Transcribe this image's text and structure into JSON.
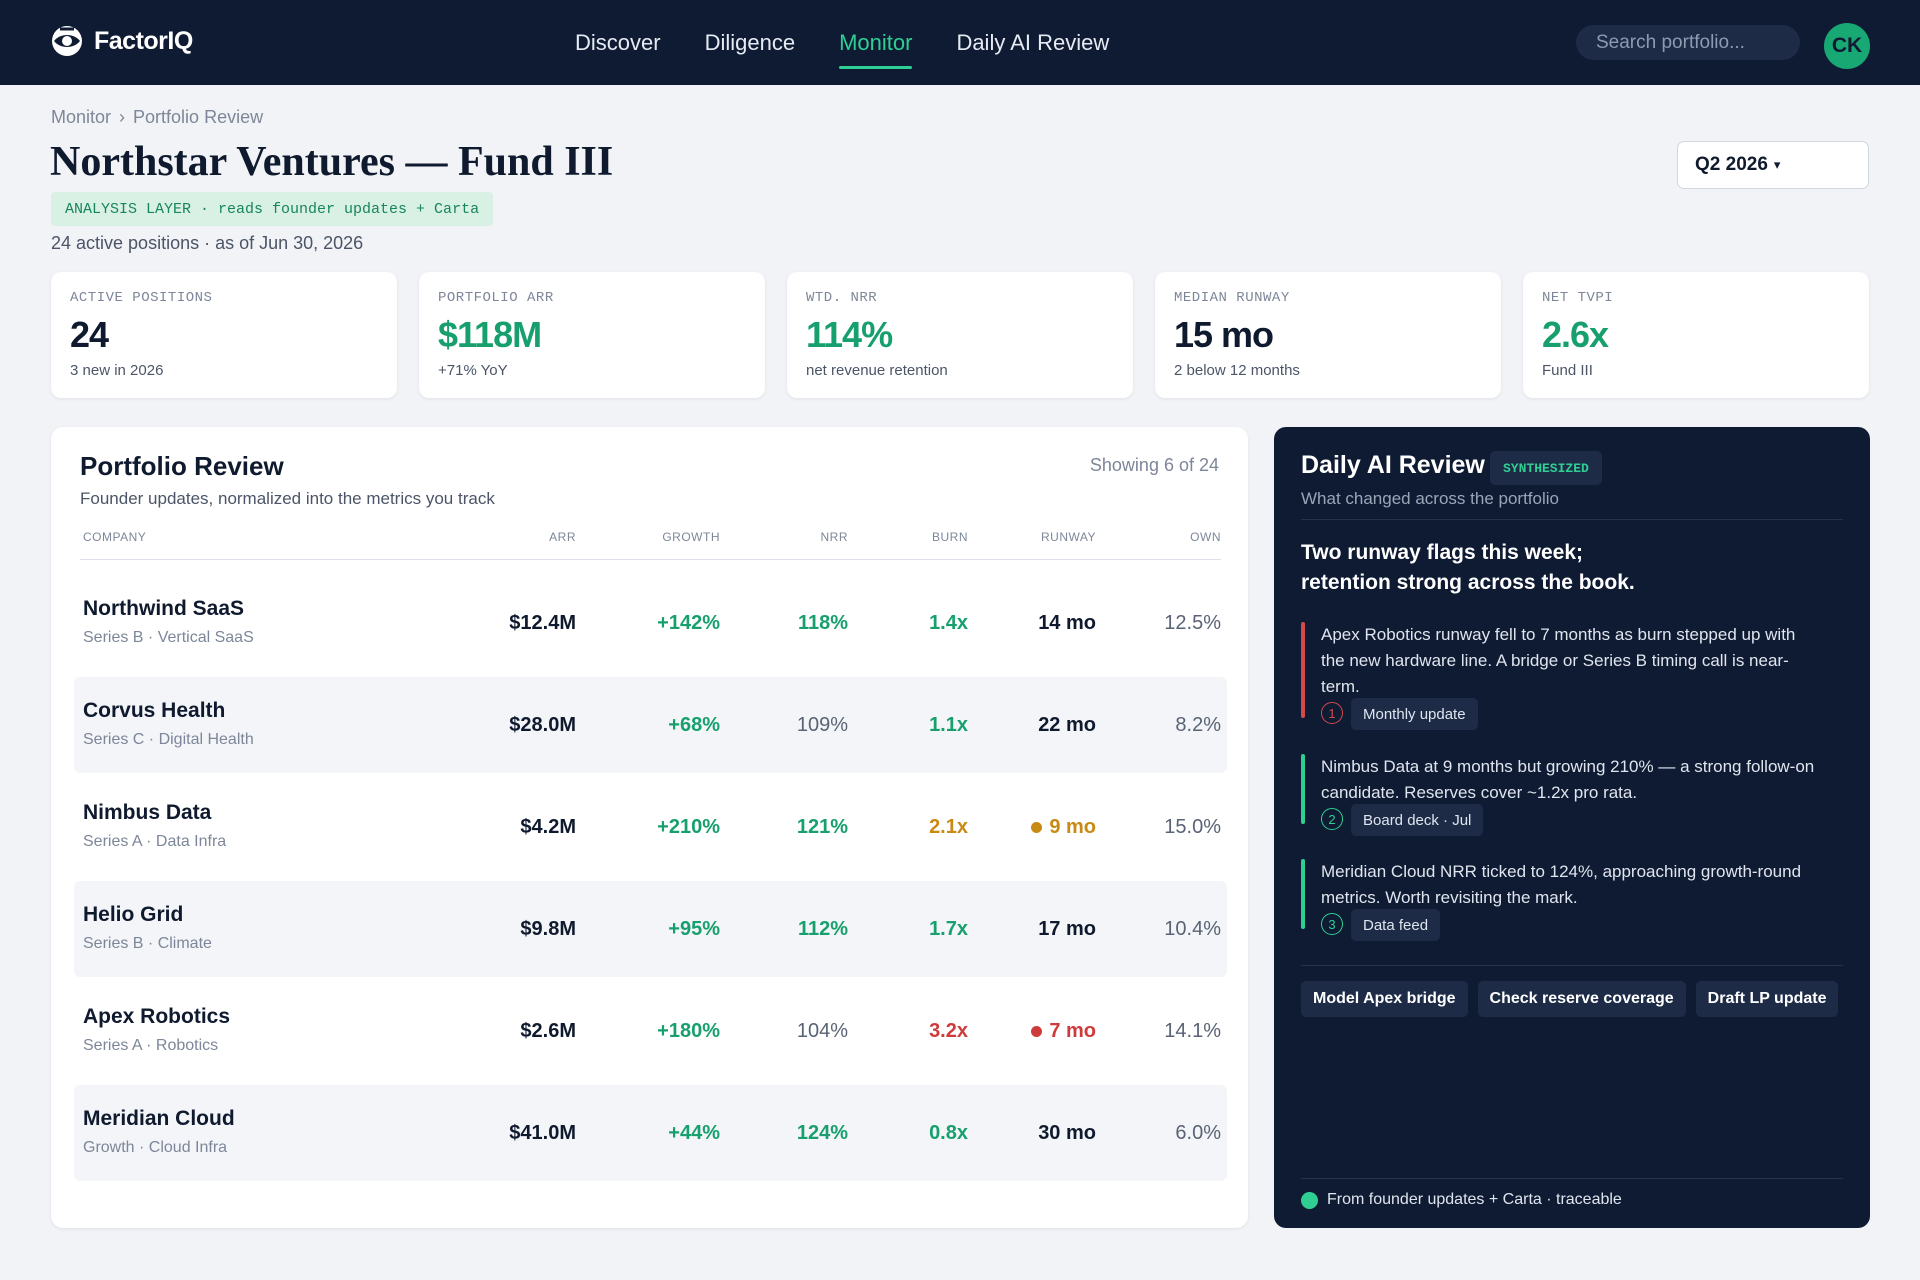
{
  "app": {
    "brand": "FactorIQ",
    "nav": [
      {
        "label": "Discover",
        "active": false
      },
      {
        "label": "Diligence",
        "active": false
      },
      {
        "label": "Monitor",
        "active": true
      },
      {
        "label": "Daily AI Review",
        "active": false
      }
    ],
    "search_placeholder": "Search portfolio...",
    "user_initials": "CK"
  },
  "header": {
    "breadcrumb": [
      "Monitor",
      "Portfolio Review"
    ],
    "breadcrumb_sep": "›",
    "title": "Northstar Ventures — Fund III",
    "layer_tag": "ANALYSIS LAYER · reads founder updates + Carta",
    "subtitle": "24 active positions · as of Jun 30, 2026",
    "period": "Q2 2026",
    "period_caret": "▾"
  },
  "kpis": [
    {
      "label": "ACTIVE POSITIONS",
      "value": "24",
      "sub": "3 new in 2026",
      "accent": false
    },
    {
      "label": "PORTFOLIO ARR",
      "value": "$118M",
      "sub": "+71% YoY",
      "accent": true
    },
    {
      "label": "WTD. NRR",
      "value": "114%",
      "sub": "net revenue retention",
      "accent": true
    },
    {
      "label": "MEDIAN RUNWAY",
      "value": "15 mo",
      "sub": "2 below 12 months",
      "accent": false
    },
    {
      "label": "NET TVPI",
      "value": "2.6x",
      "sub": "Fund III",
      "accent": true
    }
  ],
  "review": {
    "title": "Portfolio Review",
    "subtitle": "Founder updates, normalized into the metrics you track",
    "count": "Showing 6 of 24",
    "columns": [
      "COMPANY",
      "ARR",
      "GROWTH",
      "NRR",
      "BURN",
      "RUNWAY",
      "OWN"
    ],
    "rows": [
      {
        "name": "Northwind SaaS",
        "meta": "Series B · Vertical SaaS",
        "arr": "$12.4M",
        "growth": "+142%",
        "nrr": "118%",
        "nrr_status": "good",
        "burn": "1.4x",
        "burn_status": "good",
        "runway": "14 mo",
        "runway_status": "ok",
        "own": "12.5%"
      },
      {
        "name": "Corvus Health",
        "meta": "Series C · Digital Health",
        "arr": "$28.0M",
        "growth": "+68%",
        "nrr": "109%",
        "nrr_status": "neutral",
        "burn": "1.1x",
        "burn_status": "good",
        "runway": "22 mo",
        "runway_status": "ok",
        "own": "8.2%"
      },
      {
        "name": "Nimbus Data",
        "meta": "Series A · Data Infra",
        "arr": "$4.2M",
        "growth": "+210%",
        "nrr": "121%",
        "nrr_status": "good",
        "burn": "2.1x",
        "burn_status": "warn",
        "runway": "9 mo",
        "runway_status": "warn",
        "own": "15.0%"
      },
      {
        "name": "Helio Grid",
        "meta": "Series B · Climate",
        "arr": "$9.8M",
        "growth": "+95%",
        "nrr": "112%",
        "nrr_status": "good",
        "burn": "1.7x",
        "burn_status": "good",
        "runway": "17 mo",
        "runway_status": "ok",
        "own": "10.4%"
      },
      {
        "name": "Apex Robotics",
        "meta": "Series A · Robotics",
        "arr": "$2.6M",
        "growth": "+180%",
        "nrr": "104%",
        "nrr_status": "neutral",
        "burn": "3.2x",
        "burn_status": "bad",
        "runway": "7 mo",
        "runway_status": "bad",
        "own": "14.1%"
      },
      {
        "name": "Meridian Cloud",
        "meta": "Growth · Cloud Infra",
        "arr": "$41.0M",
        "growth": "+44%",
        "nrr": "124%",
        "nrr_status": "good",
        "burn": "0.8x",
        "burn_status": "good",
        "runway": "30 mo",
        "runway_status": "ok",
        "own": "6.0%"
      }
    ]
  },
  "ai_review": {
    "title": "Daily AI Review",
    "badge": "SYNTHESIZED",
    "subtitle": "What changed across the portfolio",
    "headline_line1": "Two runway flags this week;",
    "headline_line2": "retention strong across the book.",
    "findings": [
      {
        "num": "1",
        "text": "Apex Robotics runway fell to 7 months as burn stepped up with the new hardware line. A bridge or Series B timing call is near-term.",
        "source": "Monthly update",
        "color": "#d24a4a"
      },
      {
        "num": "2",
        "text": "Nimbus Data at 9 months but growing 210% — a strong follow-on candidate. Reserves cover ~1.2x pro rata.",
        "source": "Board deck · Jul",
        "color": "#2fcf94"
      },
      {
        "num": "3",
        "text": "Meridian Cloud NRR ticked to 124%, approaching growth-round metrics. Worth revisiting the mark.",
        "source": "Data feed",
        "color": "#2fcf94"
      }
    ],
    "actions": [
      "Model Apex bridge",
      "Check reserve coverage",
      "Draft LP update"
    ],
    "footer": "From founder updates + Carta · traceable"
  },
  "colors": {
    "navy": "#0f1b33",
    "accent_green": "#17a06d",
    "warn_amber": "#c98a14",
    "bad_red": "#cf3a3a"
  },
  "icons": {
    "brand": "factoriq-logo-icon",
    "caret": "chevron-down-icon",
    "status_dot": "status-dot-icon"
  }
}
